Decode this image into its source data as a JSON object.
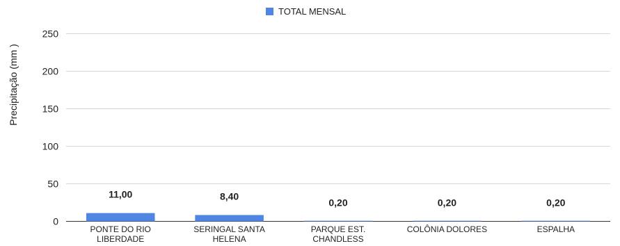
{
  "chart_data": {
    "type": "bar",
    "title": "",
    "xlabel": "",
    "ylabel": "Precipitação (mm )",
    "ylim": [
      0,
      250
    ],
    "yticks": [
      0,
      50,
      100,
      150,
      200,
      250
    ],
    "grid": true,
    "legend_position": "top-center",
    "categories": [
      [
        "PONTE DO RIO",
        "LIBERDADE"
      ],
      [
        "SERINGAL SANTA",
        "HELENA"
      ],
      [
        "PARQUE EST.",
        "CHANDLESS"
      ],
      [
        "COLÔNIA DOLORES"
      ],
      [
        "ESPALHA"
      ]
    ],
    "series": [
      {
        "name": "TOTAL MENSAL",
        "color": "#4f86e4",
        "values": [
          11.0,
          8.4,
          0.2,
          0.2,
          0.2
        ],
        "labels": [
          "11,00",
          "8,40",
          "0,20",
          "0,20",
          "0,20"
        ]
      }
    ]
  }
}
